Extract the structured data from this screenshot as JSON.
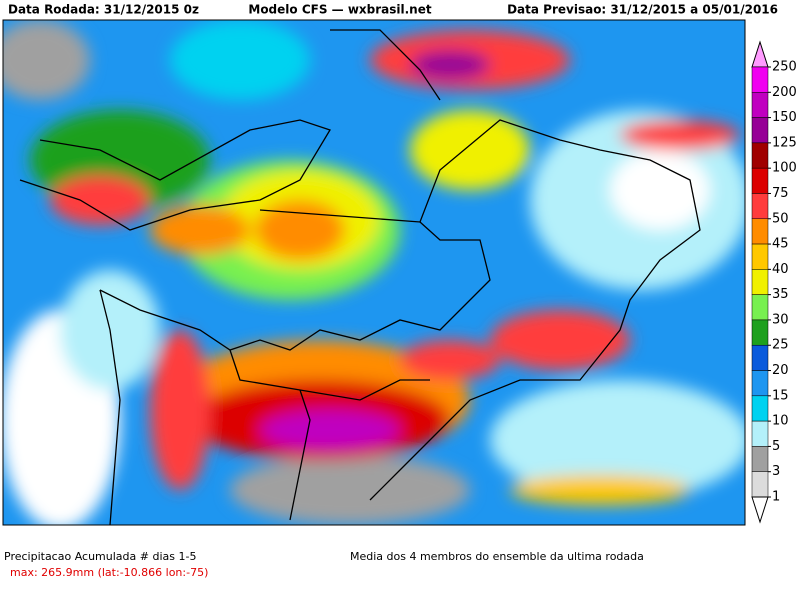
{
  "header": {
    "left": "Data Rodada: 31/12/2015 0z",
    "center": "Modelo CFS — wxbrasil.net",
    "right": "Data Previsao: 31/12/2015 a 05/01/2016"
  },
  "legend": {
    "levels": [
      250,
      200,
      150,
      125,
      100,
      75,
      50,
      45,
      40,
      35,
      30,
      25,
      20,
      15,
      10,
      5,
      3,
      1
    ],
    "colors": [
      "#ff9bff",
      "#f000f0",
      "#c000c0",
      "#960096",
      "#a00000",
      "#dc0000",
      "#ff3c3c",
      "#ff8c00",
      "#ffc800",
      "#f0f000",
      "#78f050",
      "#1ea01e",
      "#0a5adc",
      "#1e96f0",
      "#00d2f0",
      "#b4f0fa",
      "#a0a0a0",
      "#dcdcdc",
      "#ffffff"
    ]
  },
  "footer": {
    "title": "Precipitacao Acumulada # dias 1-5",
    "max": "max: 265.9mm (lat:-10.866 lon:-75)",
    "subtitle": "Media dos 4 membros do ensemble da ultima rodada"
  }
}
